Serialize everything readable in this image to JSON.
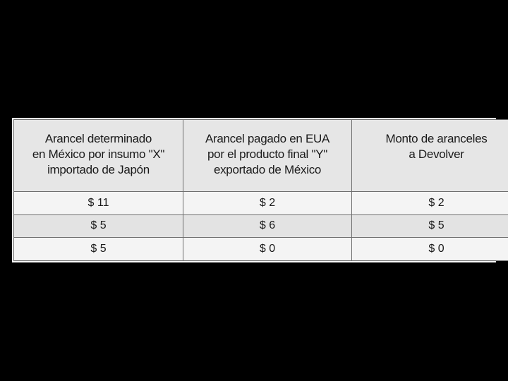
{
  "table": {
    "headers": [
      [
        "Arancel determinado",
        "en México por insumo \"X\"",
        "importado de Japón"
      ],
      [
        "Arancel pagado en EUA",
        "por el producto final \"Y\"",
        "exportado de México"
      ],
      [
        "Monto de aranceles",
        "a Devolver"
      ]
    ],
    "rows": [
      [
        "$ 11",
        "$ 2",
        "$ 2"
      ],
      [
        "$ 5",
        "$ 6",
        "$ 5"
      ],
      [
        "$ 5",
        "$ 0",
        "$ 0"
      ]
    ]
  }
}
